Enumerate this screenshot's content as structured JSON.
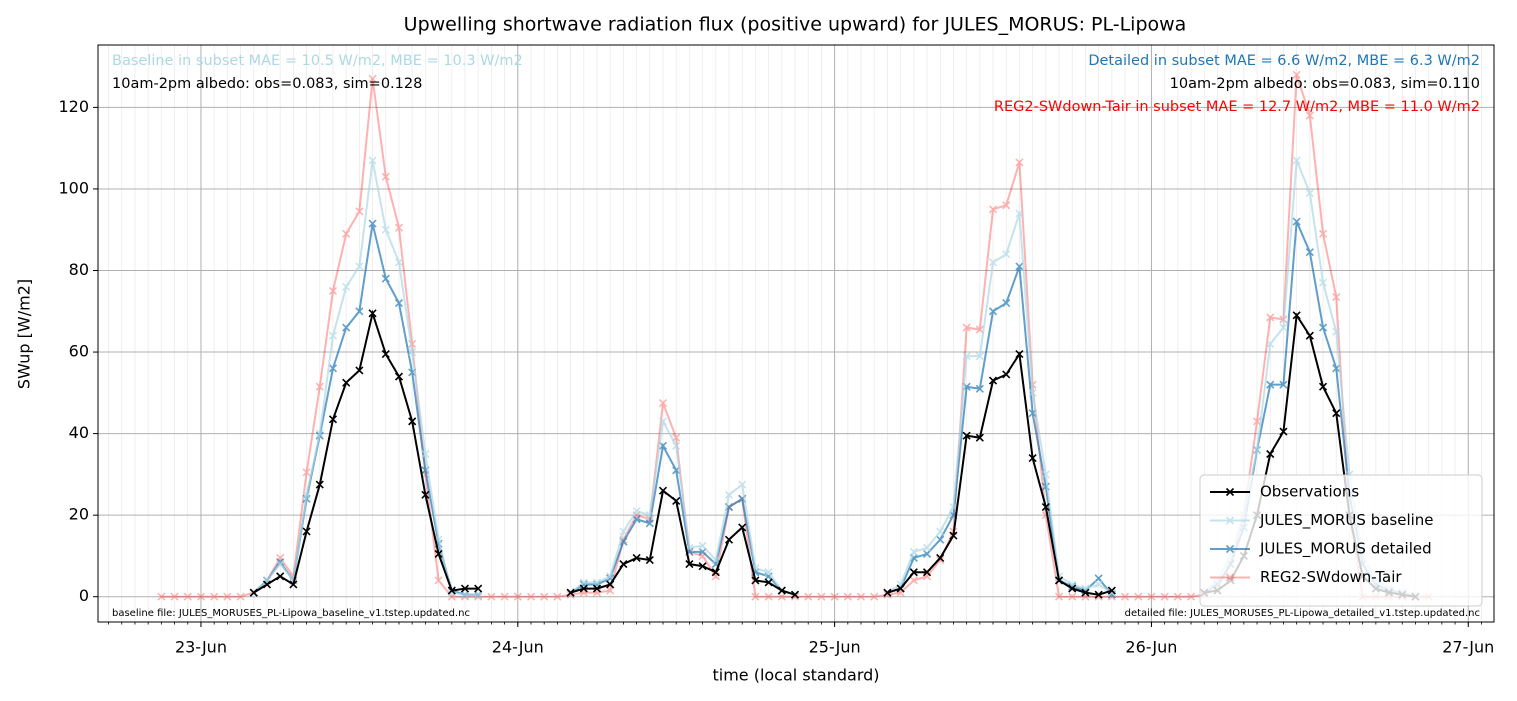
{
  "chart_data": {
    "type": "line",
    "title": "Upwelling shortwave radiation flux (positive upward) for JULES_MORUS: PL-Lipowa",
    "xlabel": "time (local standard)",
    "ylabel": "SWup [W/m2]",
    "x": [
      -3,
      -2,
      -1,
      0,
      1,
      2,
      3,
      4,
      5,
      6,
      7,
      8,
      9,
      10,
      11,
      12,
      13,
      14,
      15,
      16,
      17,
      18,
      19,
      20,
      21,
      22,
      23,
      24,
      25,
      26,
      27,
      28,
      29,
      30,
      31,
      32,
      33,
      34,
      35,
      36,
      37,
      38,
      39,
      40,
      41,
      42,
      43,
      44,
      45,
      46,
      47,
      48,
      49,
      50,
      51,
      52,
      53,
      54,
      55,
      56,
      57,
      58,
      59,
      60,
      61,
      62,
      63,
      64,
      65,
      66,
      67,
      68,
      69,
      70,
      71,
      72,
      73,
      74,
      75,
      76,
      77,
      78,
      79,
      80,
      81,
      82,
      83,
      84,
      85,
      86,
      87,
      88,
      89,
      90,
      91,
      92,
      93
    ],
    "series": [
      {
        "name": "Observations",
        "color": "#000000",
        "opacity": 1,
        "values": [
          null,
          null,
          null,
          null,
          null,
          null,
          null,
          1,
          3,
          5,
          3,
          16,
          27.5,
          43.5,
          52.5,
          55.5,
          69.5,
          59.5,
          54,
          43,
          25,
          10.5,
          1.5,
          2,
          2,
          null,
          null,
          null,
          null,
          null,
          null,
          1,
          2,
          2,
          3,
          8,
          9.5,
          9,
          26,
          23.5,
          8,
          7.5,
          6,
          14,
          17,
          4,
          3.5,
          1.5,
          0.5,
          null,
          null,
          null,
          null,
          null,
          null,
          1,
          2,
          6,
          6,
          9.5,
          15,
          39.5,
          39,
          53,
          54.5,
          59.5,
          34,
          22,
          4,
          2,
          1,
          0.5,
          1.5,
          null,
          null,
          null,
          null,
          null,
          null,
          1,
          1.5,
          4,
          10,
          20,
          35,
          40.5,
          69,
          64,
          51.5,
          45,
          20,
          5,
          2,
          1,
          0.5,
          0,
          null
        ]
      },
      {
        "name": "JULES_MORUS baseline",
        "color": "#add8e6",
        "opacity": 0.7,
        "values": [
          null,
          null,
          null,
          null,
          null,
          null,
          null,
          1,
          4,
          8,
          4,
          25,
          40,
          64,
          76,
          81,
          107,
          90,
          82,
          60,
          35,
          14,
          1,
          0.5,
          0.5,
          null,
          null,
          null,
          null,
          null,
          null,
          1,
          3.5,
          3.5,
          5,
          16,
          21,
          20,
          43,
          37,
          12,
          12.5,
          9,
          25,
          27.5,
          7,
          6,
          1.5,
          0.5,
          null,
          null,
          null,
          null,
          null,
          null,
          1,
          3,
          11,
          12,
          16,
          22,
          59,
          59,
          82,
          84,
          94,
          50,
          30,
          5,
          3,
          2,
          3,
          1,
          null,
          null,
          null,
          null,
          null,
          null,
          1,
          4,
          10,
          20,
          36,
          62,
          66,
          107,
          99,
          77,
          65,
          30,
          10,
          4,
          2,
          1,
          0.5,
          null
        ]
      },
      {
        "name": "JULES_MORUS detailed",
        "color": "#1f77b4",
        "opacity": 0.7,
        "values": [
          null,
          null,
          null,
          null,
          null,
          null,
          null,
          1,
          4,
          8.5,
          4,
          24,
          39.5,
          56,
          66,
          70,
          91.5,
          78,
          72,
          55,
          31,
          13,
          1.5,
          0.5,
          0.5,
          null,
          null,
          null,
          null,
          null,
          null,
          1,
          3,
          3,
          4.5,
          13.5,
          19,
          18,
          37,
          31,
          11,
          11,
          8,
          22,
          24,
          6,
          5,
          1.5,
          0.5,
          null,
          null,
          null,
          null,
          null,
          null,
          1,
          2,
          9.5,
          10.5,
          14,
          20,
          51.5,
          51,
          70,
          72,
          81,
          45,
          27,
          4,
          2.5,
          1.5,
          4.5,
          0.5,
          null,
          null,
          null,
          null,
          null,
          null,
          1,
          3,
          8,
          17,
          36,
          52,
          52,
          92,
          84.5,
          66,
          56,
          25,
          8,
          3,
          1.5,
          1,
          0,
          null
        ]
      },
      {
        "name": "REG2-SWdown-Tair",
        "color": "#ff0000",
        "opacity": 0.3,
        "values": [
          0,
          0,
          0,
          0,
          0,
          0,
          0,
          1,
          4,
          9.5,
          5,
          30.5,
          51.5,
          75,
          89,
          94.5,
          127,
          103,
          90.5,
          62,
          30,
          4,
          0,
          0,
          0,
          0,
          0,
          0,
          0,
          0,
          0,
          0.5,
          1,
          1,
          1.5,
          14,
          20,
          19,
          47.5,
          39,
          11,
          10,
          5,
          22,
          24,
          0,
          0,
          0,
          0,
          0,
          0,
          0,
          0,
          0,
          0,
          0.5,
          1,
          4,
          5,
          9,
          16,
          66,
          65.5,
          95,
          96,
          106.5,
          52,
          20,
          0,
          0,
          0,
          0,
          0,
          0,
          0,
          0,
          0,
          0,
          0,
          0.5,
          2,
          8,
          20,
          43,
          68.5,
          68,
          128,
          118,
          89,
          73.5,
          20,
          0,
          0,
          0,
          0,
          0,
          0
        ]
      }
    ],
    "xlim": [
      -7.8,
      97.95
    ],
    "xticks": [
      {
        "value": 0,
        "label": "23-Jun"
      },
      {
        "value": 24,
        "label": "24-Jun"
      },
      {
        "value": 48,
        "label": "25-Jun"
      },
      {
        "value": 72,
        "label": "26-Jun"
      },
      {
        "value": 96,
        "label": "27-Jun"
      }
    ],
    "minor_xtick_step": 1,
    "ylim": [
      -6.2,
      135.3
    ],
    "yticks": [
      0,
      20,
      40,
      60,
      80,
      100,
      120
    ],
    "grid": true,
    "marker": "x",
    "legend": "lower right",
    "annotations": [
      {
        "text": "Baseline in subset MAE = 10.5 W/m2, MBE = 10.3 W/m2",
        "color": "#add8e6",
        "position": "top-left"
      },
      {
        "text": "10am-2pm albedo: obs=0.083, sim=0.128",
        "color": "#000000",
        "position": "top-left"
      },
      {
        "text": "Detailed in subset MAE = 6.6 W/m2, MBE = 6.3 W/m2",
        "color": "#1f77b4",
        "position": "top-right"
      },
      {
        "text": "10am-2pm albedo: obs=0.083, sim=0.110",
        "color": "#000000",
        "position": "top-right"
      },
      {
        "text": "REG2-SWdown-Tair in subset MAE = 12.7 W/m2, MBE = 11.0 W/m2",
        "color": "#ff0000",
        "position": "top-right"
      }
    ],
    "footnotes": [
      {
        "text": "baseline file: JULES_MORUSES_PL-Lipowa_baseline_v1.tstep.updated.nc",
        "position": "bottom-left"
      },
      {
        "text": "detailed file: JULES_MORUSES_PL-Lipowa_detailed_v1.tstep.updated.nc",
        "position": "bottom-right"
      }
    ]
  }
}
